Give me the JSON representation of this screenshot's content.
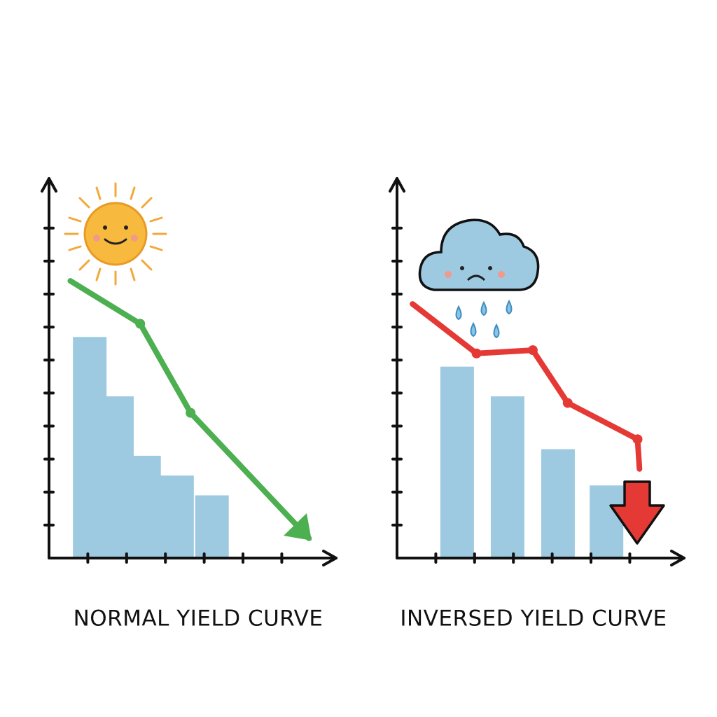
{
  "chart_data": [
    {
      "type": "bar-line",
      "title": "NORMAL YIELD CURVE",
      "xlim": [
        0,
        7.4
      ],
      "xticks": [
        1,
        2,
        3,
        4,
        5,
        6
      ],
      "ylim": [
        0,
        11.5
      ],
      "yticks": [
        1,
        2,
        3,
        4,
        5,
        6,
        7,
        8,
        9,
        10
      ],
      "series": [
        {
          "type": "bar",
          "color": "#9ecae1",
          "x": [
            1.05,
            1.75,
            2.45,
            3.3,
            4.2
          ],
          "values": [
            6.7,
            4.9,
            3.1,
            2.5,
            1.9
          ]
        },
        {
          "type": "line",
          "color": "#4caf50",
          "x": [
            0.55,
            2.35,
            3.65,
            6.7
          ],
          "values": [
            8.4,
            7.1,
            4.4,
            0.6
          ]
        }
      ]
    },
    {
      "type": "bar-line",
      "title": "INVERSED YIELD CURVE",
      "xlim": [
        0,
        7.4
      ],
      "xticks": [
        1,
        2,
        3,
        4,
        5,
        6
      ],
      "ylim": [
        0,
        11.5
      ],
      "yticks": [
        1,
        2,
        3,
        4,
        5,
        6,
        7,
        8,
        9,
        10
      ],
      "series": [
        {
          "type": "bar",
          "color": "#9ecae1",
          "x": [
            1.55,
            2.85,
            4.15,
            5.4
          ],
          "values": [
            5.8,
            4.9,
            3.3,
            2.2
          ]
        },
        {
          "type": "line",
          "color": "#e53935",
          "x": [
            0.4,
            2.05,
            3.5,
            4.4,
            6.2,
            6.25
          ],
          "values": [
            7.7,
            6.2,
            6.3,
            4.7,
            3.6,
            2.7
          ]
        }
      ]
    }
  ]
}
